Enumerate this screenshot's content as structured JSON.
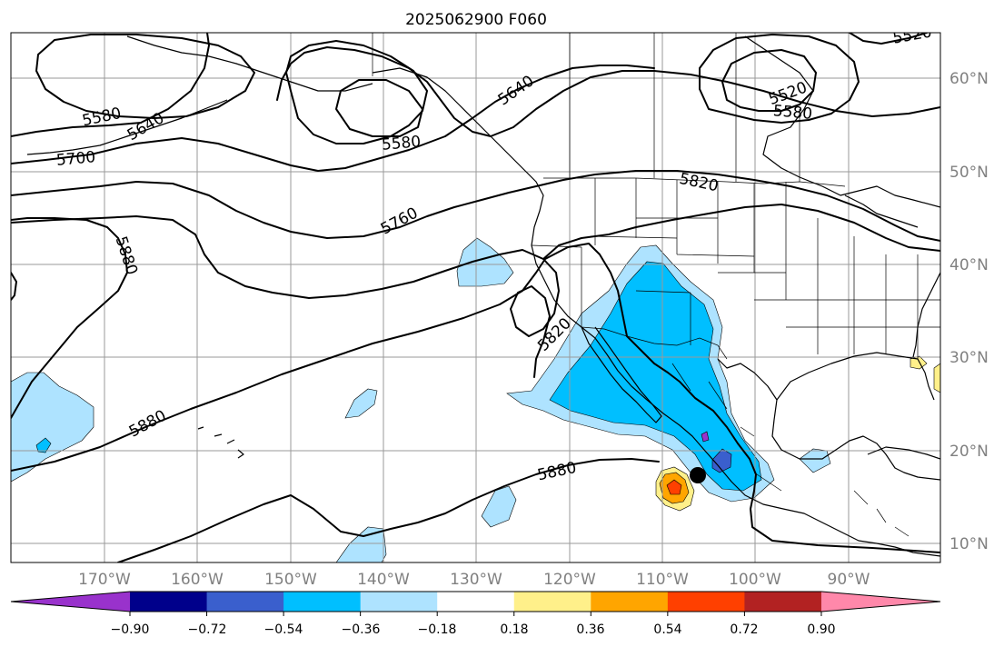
{
  "title": "2025062900 F060",
  "lat_labels": [
    "60°N",
    "50°N",
    "40°N",
    "30°N",
    "20°N",
    "10°N"
  ],
  "lon_labels": [
    "170°W",
    "160°W",
    "150°W",
    "140°W",
    "130°W",
    "120°W",
    "110°W",
    "100°W",
    "90°W"
  ],
  "contour_labels": [
    "5580",
    "5640",
    "5700",
    "5580",
    "5640",
    "5520",
    "5580",
    "5520",
    "5820",
    "5760",
    "5880",
    "5820",
    "5880",
    "5880"
  ],
  "colorbar": {
    "ticks": [
      "−0.90",
      "−0.72",
      "−0.54",
      "−0.36",
      "−0.18",
      "0.18",
      "0.36",
      "0.54",
      "0.72",
      "0.90"
    ],
    "colors": [
      "#9932cc",
      "#00008b",
      "#3a5fcd",
      "#00bfff",
      "#aee3ff",
      "#ffffff",
      "#fff08a",
      "#ffa500",
      "#ff4000",
      "#b22222",
      "#ff88aa"
    ]
  },
  "marker": {
    "symbol": "black-dot",
    "lat": 17.2,
    "lon": -106.2
  }
}
